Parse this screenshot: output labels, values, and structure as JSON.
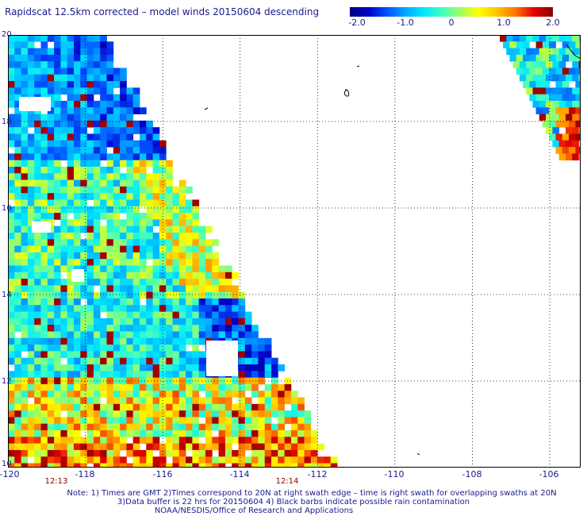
{
  "title": "Rapidscat 12.5km corrected – model winds 20150604 descending",
  "colorbar": {
    "ticks": [
      "-2.0",
      "-1.0",
      "0",
      "1.0",
      "2.0"
    ],
    "tick_values": [
      -2,
      -1,
      0,
      1,
      2
    ],
    "range": [
      -2,
      2
    ],
    "colors": [
      "#000080",
      "#0000c8",
      "#0050ff",
      "#00a8ff",
      "#00e8ff",
      "#40ffc0",
      "#a0ff60",
      "#ffff00",
      "#ffc000",
      "#ff7000",
      "#e00000",
      "#8b0000"
    ]
  },
  "axes": {
    "lat_labels": [
      "20",
      "18",
      "16",
      "14",
      "12",
      "10"
    ],
    "lat_values": [
      20,
      18,
      16,
      14,
      12,
      10
    ],
    "lon_labels": [
      "-120",
      "-118",
      "-116",
      "-114",
      "-112",
      "-110",
      "-108",
      "-106"
    ],
    "lon_values": [
      -120,
      -118,
      -116,
      -114,
      -112,
      -110,
      -108,
      -106
    ],
    "lat_range": [
      10,
      20
    ],
    "lon_range": [
      -120,
      -105.2
    ]
  },
  "time_labels": [
    {
      "text": "12:13",
      "lon": -118.6
    },
    {
      "text": "12:14",
      "lon": -112.6
    }
  ],
  "notes": [
    "Note: 1) Times are GMT 2)Times correspond to 20N at right swath edge – time is right swath for overlapping swaths at 20N",
    "3)Data buffer is 22 hrs for 20150604 4) Black barbs indicate possible rain contamination",
    "NOAA/NESDIS/Office of Research and Applications"
  ]
}
